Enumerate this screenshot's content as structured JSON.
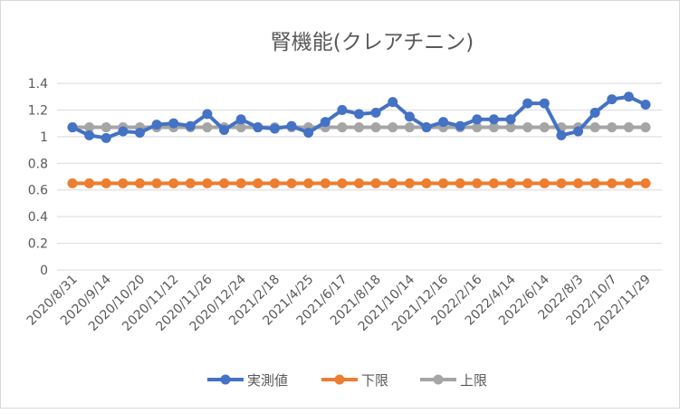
{
  "chart_data": {
    "type": "line",
    "title": "腎機能(クレアチニン)",
    "xlabel": "",
    "ylabel": "",
    "ylim": [
      0,
      1.4
    ],
    "y_ticks": [
      "0",
      "0.2",
      "0.4",
      "0.6",
      "0.8",
      "1",
      "1.2",
      "1.4"
    ],
    "grid": true,
    "legend_position": "bottom",
    "tick_label_stride": 2,
    "tick_labels": [
      "2020/8/31",
      "2020/9/14",
      "2020/10/20",
      "2020/11/12",
      "2020/11/26",
      "2020/12/24",
      "2021/2/18",
      "2021/4/25",
      "2021/6/17",
      "2021/8/18",
      "2021/10/14",
      "2021/12/16",
      "2022/2/16",
      "2022/4/14",
      "2022/6/14",
      "2022/8/3",
      "2022/10/7",
      "2022/11/29"
    ],
    "series": [
      {
        "name": "実測値",
        "color": "#4472c4",
        "values": [
          1.07,
          1.01,
          0.99,
          1.04,
          1.03,
          1.09,
          1.1,
          1.08,
          1.17,
          1.05,
          1.13,
          1.07,
          1.06,
          1.08,
          1.03,
          1.11,
          1.2,
          1.17,
          1.18,
          1.26,
          1.15,
          1.07,
          1.11,
          1.08,
          1.13,
          1.13,
          1.13,
          1.25,
          1.25,
          1.01,
          1.04,
          1.18,
          1.28,
          1.3,
          1.24
        ]
      },
      {
        "name": "下限",
        "color": "#ed7d31",
        "values": [
          0.65,
          0.65,
          0.65,
          0.65,
          0.65,
          0.65,
          0.65,
          0.65,
          0.65,
          0.65,
          0.65,
          0.65,
          0.65,
          0.65,
          0.65,
          0.65,
          0.65,
          0.65,
          0.65,
          0.65,
          0.65,
          0.65,
          0.65,
          0.65,
          0.65,
          0.65,
          0.65,
          0.65,
          0.65,
          0.65,
          0.65,
          0.65,
          0.65,
          0.65,
          0.65
        ]
      },
      {
        "name": "上限",
        "color": "#a5a5a5",
        "values": [
          1.07,
          1.07,
          1.07,
          1.07,
          1.07,
          1.07,
          1.07,
          1.07,
          1.07,
          1.07,
          1.07,
          1.07,
          1.07,
          1.07,
          1.07,
          1.07,
          1.07,
          1.07,
          1.07,
          1.07,
          1.07,
          1.07,
          1.07,
          1.07,
          1.07,
          1.07,
          1.07,
          1.07,
          1.07,
          1.07,
          1.07,
          1.07,
          1.07,
          1.07,
          1.07
        ]
      }
    ]
  }
}
